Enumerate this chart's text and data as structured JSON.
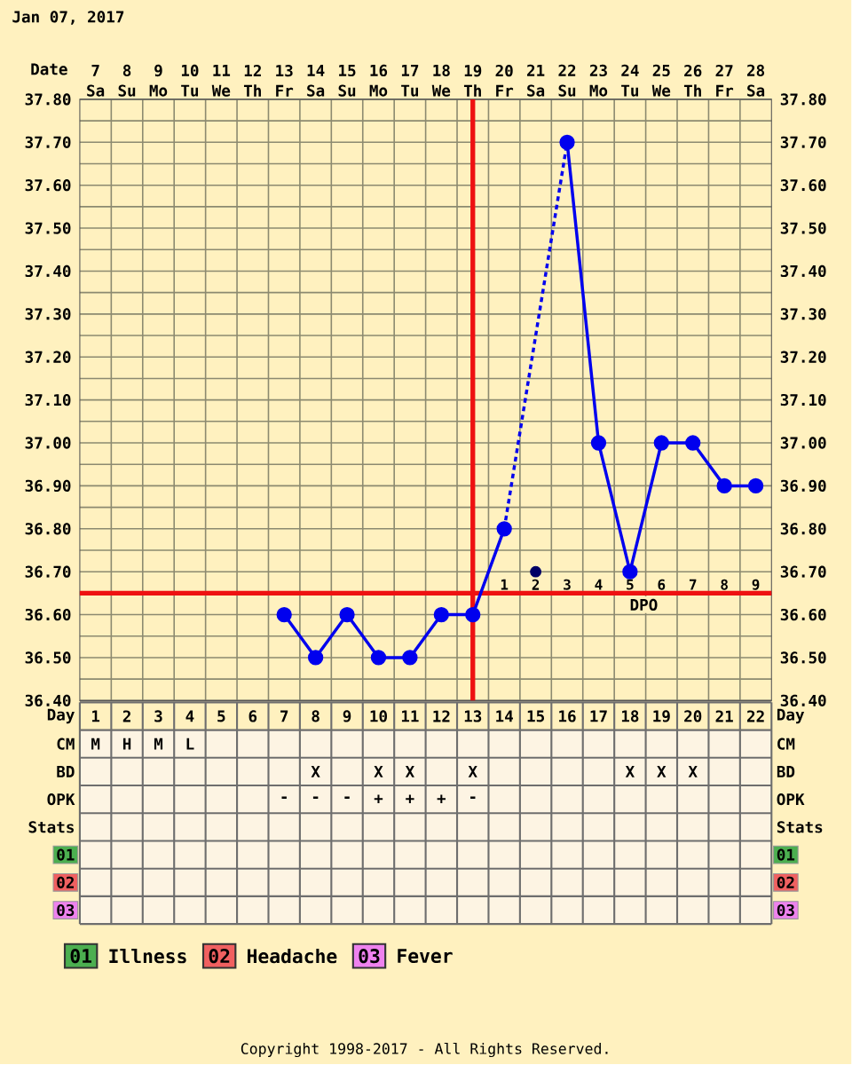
{
  "chart_data": [
    {
      "type": "line",
      "title": "Jan 07, 2017",
      "xlabel": "Date",
      "xlim": [
        6.5,
        28.5
      ],
      "xticks": [
        {
          "value": 7,
          "label": "7 Sa"
        },
        {
          "value": 8,
          "label": "8 Su"
        },
        {
          "value": 9,
          "label": "9 Mo"
        },
        {
          "value": 10,
          "label": "10 Tu"
        },
        {
          "value": 11,
          "label": "11 We"
        },
        {
          "value": 12,
          "label": "12 Th"
        },
        {
          "value": 13,
          "label": "13 Fr"
        },
        {
          "value": 14,
          "label": "14 Sa"
        },
        {
          "value": 15,
          "label": "15 Su"
        },
        {
          "value": 16,
          "label": "16 Mo"
        },
        {
          "value": 17,
          "label": "17 Tu"
        },
        {
          "value": 18,
          "label": "18 We"
        },
        {
          "value": 19,
          "label": "19 Th"
        },
        {
          "value": 20,
          "label": "20 Fr"
        },
        {
          "value": 21,
          "label": "21 Sa"
        },
        {
          "value": 22,
          "label": "22 Su"
        },
        {
          "value": 23,
          "label": "23 Mo"
        },
        {
          "value": 24,
          "label": "24 Tu"
        },
        {
          "value": 25,
          "label": "25 We"
        },
        {
          "value": 26,
          "label": "26 Th"
        },
        {
          "value": 27,
          "label": "27 Fr"
        },
        {
          "value": 28,
          "label": "28 Sa"
        }
      ],
      "ylim": [
        36.4,
        37.8
      ],
      "yticks": [
        {
          "value": 36.4,
          "label": "36.40"
        },
        {
          "value": 36.5,
          "label": "36.50"
        },
        {
          "value": 36.6,
          "label": "36.60"
        },
        {
          "value": 36.7,
          "label": "36.70"
        },
        {
          "value": 36.8,
          "label": "36.80"
        },
        {
          "value": 36.9,
          "label": "36.90"
        },
        {
          "value": 37.0,
          "label": "37.00"
        },
        {
          "value": 37.1,
          "label": "37.10"
        },
        {
          "value": 37.2,
          "label": "37.20"
        },
        {
          "value": 37.3,
          "label": "37.30"
        },
        {
          "value": 37.4,
          "label": "37.40"
        },
        {
          "value": 37.5,
          "label": "37.50"
        },
        {
          "value": 37.6,
          "label": "37.60"
        },
        {
          "value": 37.7,
          "label": "37.70"
        },
        {
          "value": 37.8,
          "label": "37.80"
        }
      ],
      "y2lim": [
        36.4,
        37.8
      ],
      "y2ticks": [
        {
          "value": 36.4,
          "label": "36.40"
        },
        {
          "value": 36.5,
          "label": "36.50"
        },
        {
          "value": 36.6,
          "label": "36.60"
        },
        {
          "value": 36.7,
          "label": "36.70"
        },
        {
          "value": 36.8,
          "label": "36.80"
        },
        {
          "value": 36.9,
          "label": "36.90"
        },
        {
          "value": 37.0,
          "label": "37.00"
        },
        {
          "value": 37.1,
          "label": "37.10"
        },
        {
          "value": 37.2,
          "label": "37.20"
        },
        {
          "value": 37.3,
          "label": "37.30"
        },
        {
          "value": 37.4,
          "label": "37.40"
        },
        {
          "value": 37.5,
          "label": "37.50"
        },
        {
          "value": 37.6,
          "label": "37.60"
        },
        {
          "value": 37.7,
          "label": "37.70"
        },
        {
          "value": 37.8,
          "label": "37.80"
        }
      ],
      "grid": true,
      "marker": "circle",
      "series": [
        {
          "color": "#0000ee",
          "line_style": "solid",
          "x": [
            13,
            14,
            15,
            16,
            17,
            18,
            19,
            20
          ],
          "values": [
            36.6,
            36.5,
            36.6,
            36.5,
            36.5,
            36.6,
            36.6,
            36.8
          ]
        },
        {
          "color": "#0000ee",
          "line_style": "dotted",
          "x": [
            20,
            22
          ],
          "values": [
            36.8,
            37.7
          ]
        },
        {
          "color": "#0000ee",
          "line_style": "solid",
          "x": [
            22,
            23,
            24,
            25,
            26,
            27,
            28
          ],
          "values": [
            37.7,
            37.0,
            36.7,
            37.0,
            37.0,
            36.9,
            36.9
          ]
        },
        {
          "color": "#000066",
          "x": [
            21
          ],
          "values": [
            36.7
          ]
        }
      ],
      "ref_lines": [
        {
          "axis": "y",
          "value": 36.65,
          "color": "#ee1111"
        },
        {
          "axis": "x",
          "value": 19,
          "color": "#ee1111"
        }
      ],
      "annotations": [
        {
          "text": "1",
          "x": 20,
          "y": 36.67
        },
        {
          "text": "2",
          "x": 21,
          "y": 36.67
        },
        {
          "text": "3",
          "x": 22,
          "y": 36.67
        },
        {
          "text": "4",
          "x": 23,
          "y": 36.67
        },
        {
          "text": "5",
          "x": 24,
          "y": 36.67
        },
        {
          "text": "6",
          "x": 25,
          "y": 36.67
        },
        {
          "text": "7",
          "x": 26,
          "y": 36.67
        },
        {
          "text": "8",
          "x": 27,
          "y": 36.67
        },
        {
          "text": "9",
          "x": 28,
          "y": 36.67
        },
        "DPO"
      ]
    },
    {
      "type": "heatmap",
      "categories": [
        null,
        null,
        null,
        null,
        null,
        null,
        null,
        null,
        null,
        null,
        null,
        null,
        null,
        null,
        null,
        null,
        null,
        null,
        null,
        null,
        null,
        null
      ],
      "y_categories": [
        "Day",
        "CM",
        "BD",
        "OPK",
        "Stats",
        "01",
        "02",
        "03"
      ],
      "y2_categories": [
        "Day",
        "CM",
        "BD",
        "OPK",
        "Stats",
        "01",
        "02",
        "03"
      ],
      "cells": [
        [
          null,
          null,
          null,
          null,
          null,
          null,
          null,
          null,
          null,
          null,
          null,
          null,
          null,
          null,
          null,
          null,
          null,
          null,
          null,
          null,
          null,
          null
        ],
        [
          null,
          null,
          null,
          null,
          null,
          null,
          null,
          null,
          null,
          null,
          null,
          null,
          null,
          null,
          null,
          null,
          null,
          null,
          null,
          null,
          null,
          null
        ],
        [
          null,
          null,
          null,
          null,
          null,
          null,
          null,
          null,
          null,
          null,
          null,
          null,
          null,
          null,
          null,
          null,
          null,
          null,
          null,
          null,
          null,
          null
        ],
        [
          null,
          null,
          null,
          null,
          null,
          null,
          null,
          null,
          null,
          null,
          null,
          null,
          null,
          null,
          null,
          null,
          null,
          null,
          null,
          null,
          null,
          null
        ],
        [
          null,
          null,
          null,
          null,
          null,
          null,
          null,
          null,
          null,
          null,
          null,
          null,
          null,
          null,
          null,
          null,
          null,
          null,
          null,
          null,
          null,
          null
        ],
        [
          null,
          null,
          null,
          null,
          null,
          null,
          null,
          null,
          null,
          null,
          null,
          null,
          null,
          null,
          null,
          null,
          null,
          null,
          null,
          null,
          null,
          null
        ],
        [
          null,
          null,
          null,
          null,
          null,
          null,
          null,
          null,
          null,
          null,
          null,
          null,
          null,
          null,
          null,
          null,
          null,
          null,
          null,
          null,
          null,
          null
        ],
        [
          null,
          null,
          null,
          null,
          null,
          null,
          null,
          null,
          null,
          null,
          null,
          null,
          null,
          null,
          null,
          null,
          null,
          null,
          null,
          null,
          null,
          null
        ]
      ],
      "cell_labels": [
        [
          "1",
          "2",
          "3",
          "4",
          "5",
          "6",
          "7",
          "8",
          "9",
          "10",
          "11",
          "12",
          "13",
          "14",
          "15",
          "16",
          "17",
          "18",
          "19",
          "20",
          "21",
          "22"
        ],
        [
          "M",
          "H",
          "M",
          "L",
          null,
          null,
          null,
          null,
          null,
          null,
          null,
          null,
          null,
          null,
          null,
          null,
          null,
          null,
          null,
          null,
          null,
          null
        ],
        [
          null,
          null,
          null,
          null,
          null,
          null,
          null,
          "X",
          null,
          "X",
          "X",
          null,
          "X",
          null,
          null,
          null,
          null,
          "X",
          "X",
          "X",
          null,
          null
        ],
        [
          null,
          null,
          null,
          null,
          null,
          null,
          "-",
          "-",
          "-",
          "+",
          "+",
          "+",
          "-",
          null,
          null,
          null,
          null,
          null,
          null,
          null,
          null,
          null
        ],
        [
          null,
          null,
          null,
          null,
          null,
          null,
          null,
          null,
          null,
          null,
          null,
          null,
          null,
          null,
          null,
          null,
          null,
          null,
          null,
          null,
          null,
          null
        ],
        [
          null,
          null,
          null,
          null,
          null,
          null,
          null,
          null,
          null,
          null,
          null,
          null,
          null,
          null,
          null,
          null,
          null,
          null,
          null,
          null,
          null,
          null
        ],
        [
          null,
          null,
          null,
          null,
          null,
          null,
          null,
          null,
          null,
          null,
          null,
          null,
          null,
          null,
          null,
          null,
          null,
          null,
          null,
          null,
          null,
          null
        ],
        [
          null,
          null,
          null,
          null,
          null,
          null,
          null,
          null,
          null,
          null,
          null,
          null,
          null,
          null,
          null,
          null,
          null,
          null,
          null,
          null,
          null,
          null
        ]
      ],
      "annotations": [
        "Illness",
        "Headache",
        "Fever",
        "Copyright 1998-2017 - All Rights Reserved."
      ]
    }
  ]
}
